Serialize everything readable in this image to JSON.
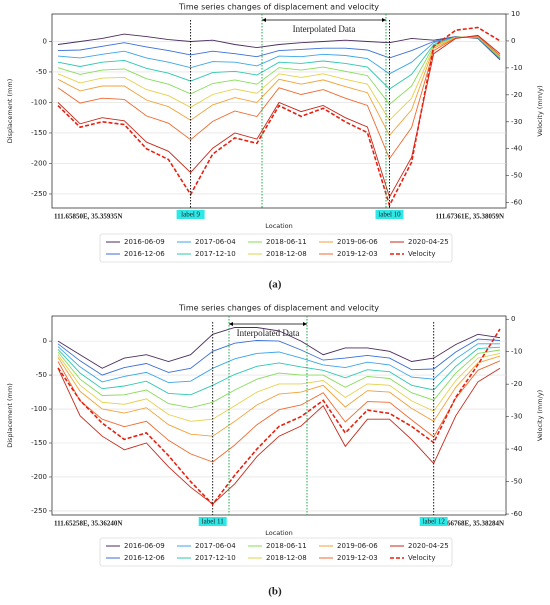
{
  "chart_data": [
    {
      "type": "line",
      "title": "Time series changes of displacement and velocity",
      "xlabel": "Location",
      "ylabel": "Displacement (mm)",
      "y2label": "Velocity (mm/y)",
      "panel_label": "(a)",
      "interpolated_label": "Interpolated Data",
      "point_labels": [
        "label 9",
        "label 10"
      ],
      "start_label": "111.65850E, 35.35935N",
      "end_label": "111.67361E, 35.38059N",
      "categories": [
        null,
        null,
        null,
        null,
        null,
        null,
        null,
        null,
        null,
        null,
        null,
        null,
        null,
        null,
        null,
        null,
        null,
        null,
        null,
        null,
        null
      ],
      "ylim": [
        -273,
        45
      ],
      "yticks": [
        0,
        -50,
        -100,
        -150,
        -200,
        -250
      ],
      "y2lim": [
        -62,
        10
      ],
      "y2ticks": [
        10,
        0,
        -10,
        -20,
        -30,
        -40,
        -50,
        -60
      ],
      "grid": true,
      "series": [
        {
          "name": "2016-06-09",
          "color": "#4b2d5e",
          "values": [
            -5,
            0,
            5,
            12,
            8,
            3,
            0,
            2,
            -5,
            -10,
            -5,
            -2,
            0,
            2,
            0,
            -2,
            5,
            2,
            8,
            5,
            -30
          ]
        },
        {
          "name": "2016-12-06",
          "color": "#3a6fd8",
          "values": [
            -15,
            -14,
            -8,
            -2,
            -9,
            -15,
            -22,
            -16,
            -20,
            -25,
            -15,
            -13,
            -11,
            -11,
            -14,
            -27,
            -15,
            0,
            8,
            6,
            -29
          ]
        },
        {
          "name": "2017-06-04",
          "color": "#3ca6e6",
          "values": [
            -24,
            -27,
            -21,
            -16,
            -27,
            -34,
            -43,
            -33,
            -34,
            -40,
            -24,
            -25,
            -21,
            -23,
            -28,
            -53,
            -34,
            -2,
            7,
            6,
            -28
          ]
        },
        {
          "name": "2017-12-10",
          "color": "#2ec9b0",
          "values": [
            -34,
            -41,
            -34,
            -31,
            -44,
            -52,
            -65,
            -51,
            -49,
            -55,
            -34,
            -36,
            -32,
            -36,
            -42,
            -78,
            -54,
            -5,
            7,
            7,
            -27
          ]
        },
        {
          "name": "2018-06-11",
          "color": "#86dc5a",
          "values": [
            -43,
            -54,
            -47,
            -45,
            -61,
            -70,
            -86,
            -69,
            -63,
            -70,
            -43,
            -47,
            -42,
            -49,
            -56,
            -103,
            -73,
            -7,
            7,
            7,
            -26
          ]
        },
        {
          "name": "2018-12-08",
          "color": "#e6d04a",
          "values": [
            -53,
            -68,
            -60,
            -59,
            -79,
            -89,
            -108,
            -87,
            -78,
            -85,
            -53,
            -59,
            -53,
            -62,
            -70,
            -129,
            -93,
            -9,
            7,
            8,
            -25
          ]
        },
        {
          "name": "2019-06-06",
          "color": "#f2a23a",
          "values": [
            -62,
            -81,
            -73,
            -73,
            -96,
            -107,
            -129,
            -104,
            -92,
            -100,
            -62,
            -70,
            -63,
            -74,
            -84,
            -154,
            -112,
            -11,
            6,
            8,
            -24
          ]
        },
        {
          "name": "2019-12-03",
          "color": "#f06a30",
          "values": [
            -76,
            -101,
            -93,
            -95,
            -122,
            -134,
            -161,
            -131,
            -114,
            -123,
            -76,
            -87,
            -79,
            -93,
            -105,
            -192,
            -141,
            -15,
            6,
            9,
            -23
          ]
        },
        {
          "name": "2020-04-25",
          "color": "#c42a1c",
          "values": [
            -100,
            -135,
            -125,
            -130,
            -165,
            -180,
            -215,
            -175,
            -150,
            -160,
            -100,
            -115,
            -105,
            -125,
            -140,
            -255,
            -190,
            -20,
            5,
            10,
            -20
          ]
        },
        {
          "name": "Velocity",
          "color": "#e8200f",
          "dashed": true,
          "axis": "y2",
          "values": [
            -24,
            -32,
            -30,
            -31,
            -40,
            -44,
            -57,
            -42,
            -36,
            -38,
            -24,
            -28,
            -25,
            -30,
            -34,
            -61,
            -45,
            -2,
            4,
            5,
            0
          ]
        }
      ]
    },
    {
      "type": "line",
      "title": "Time series changes of displacement and velocity",
      "xlabel": "Location",
      "ylabel": "Displacement (mm)",
      "y2label": "Velocity (mm/y)",
      "panel_label": "(b)",
      "interpolated_label": "Interpolated Data",
      "point_labels": [
        "label 11",
        "label 12"
      ],
      "start_label": "111.65258E, 35.36240N",
      "end_label": "111.66768E, 35.38284N",
      "categories": [
        null,
        null,
        null,
        null,
        null,
        null,
        null,
        null,
        null,
        null,
        null,
        null,
        null,
        null,
        null,
        null,
        null,
        null,
        null,
        null,
        null
      ],
      "ylim": [
        -256,
        37
      ],
      "yticks": [
        0,
        -50,
        -100,
        -150,
        -200,
        -250
      ],
      "y2lim": [
        -60.3,
        1
      ],
      "y2ticks": [
        0,
        -10,
        -20,
        -30,
        -40,
        -50,
        -60
      ],
      "grid": true,
      "series": [
        {
          "name": "2016-06-09",
          "color": "#4b2d5e",
          "values": [
            0,
            -20,
            -40,
            -25,
            -20,
            -30,
            -20,
            10,
            20,
            20,
            15,
            0,
            -20,
            -10,
            -10,
            -15,
            -30,
            -25,
            -5,
            10,
            5
          ]
        },
        {
          "name": "2016-12-06",
          "color": "#3a6fd8",
          "values": [
            -4,
            -29,
            -50,
            -39,
            -33,
            -46,
            -40,
            -15,
            -3,
            1,
            0,
            -13,
            -28,
            -25,
            -21,
            -25,
            -42,
            -41,
            -16,
            3,
            1
          ]
        },
        {
          "name": "2017-06-04",
          "color": "#3ca6e6",
          "values": [
            -8,
            -38,
            -60,
            -52,
            -46,
            -61,
            -59,
            -40,
            -26,
            -18,
            -16,
            -25,
            -35,
            -39,
            -31,
            -35,
            -53,
            -56,
            -26,
            -4,
            -4
          ]
        },
        {
          "name": "2017-12-10",
          "color": "#2ec9b0",
          "values": [
            -12,
            -47,
            -70,
            -66,
            -59,
            -77,
            -79,
            -65,
            -49,
            -37,
            -32,
            -38,
            -43,
            -54,
            -42,
            -45,
            -65,
            -72,
            -37,
            -11,
            -9
          ]
        },
        {
          "name": "2018-06-11",
          "color": "#86dc5a",
          "values": [
            -16,
            -56,
            -80,
            -79,
            -72,
            -92,
            -98,
            -90,
            -72,
            -56,
            -47,
            -50,
            -50,
            -68,
            -52,
            -55,
            -76,
            -87,
            -47,
            -18,
            -13
          ]
        },
        {
          "name": "2018-12-08",
          "color": "#e6d04a",
          "values": [
            -20,
            -65,
            -90,
            -93,
            -85,
            -108,
            -118,
            -115,
            -95,
            -75,
            -63,
            -63,
            -58,
            -83,
            -63,
            -65,
            -88,
            -103,
            -58,
            -25,
            -18
          ]
        },
        {
          "name": "2019-06-06",
          "color": "#f2a23a",
          "values": [
            -24,
            -74,
            -100,
            -106,
            -98,
            -123,
            -137,
            -140,
            -118,
            -94,
            -78,
            -75,
            -65,
            -97,
            -73,
            -75,
            -99,
            -118,
            -68,
            -32,
            -22
          ]
        },
        {
          "name": "2019-12-03",
          "color": "#f06a30",
          "values": [
            -30,
            -88,
            -115,
            -126,
            -118,
            -146,
            -166,
            -178,
            -153,
            -123,
            -101,
            -94,
            -76,
            -119,
            -89,
            -90,
            -116,
            -141,
            -84,
            -43,
            -29
          ]
        },
        {
          "name": "2020-04-25",
          "color": "#c42a1c",
          "values": [
            -40,
            -110,
            -140,
            -160,
            -150,
            -185,
            -215,
            -240,
            -210,
            -170,
            -140,
            -125,
            -95,
            -155,
            -115,
            -115,
            -145,
            -180,
            -110,
            -60,
            -40
          ]
        },
        {
          "name": "Velocity",
          "color": "#e8200f",
          "dashed": true,
          "axis": "y2",
          "values": [
            -15,
            -25,
            -32,
            -37,
            -35,
            -42,
            -50,
            -57,
            -48,
            -40,
            -33,
            -30,
            -25,
            -35,
            -28,
            -29,
            -33,
            -38,
            -24,
            -14,
            -3
          ]
        }
      ]
    }
  ]
}
